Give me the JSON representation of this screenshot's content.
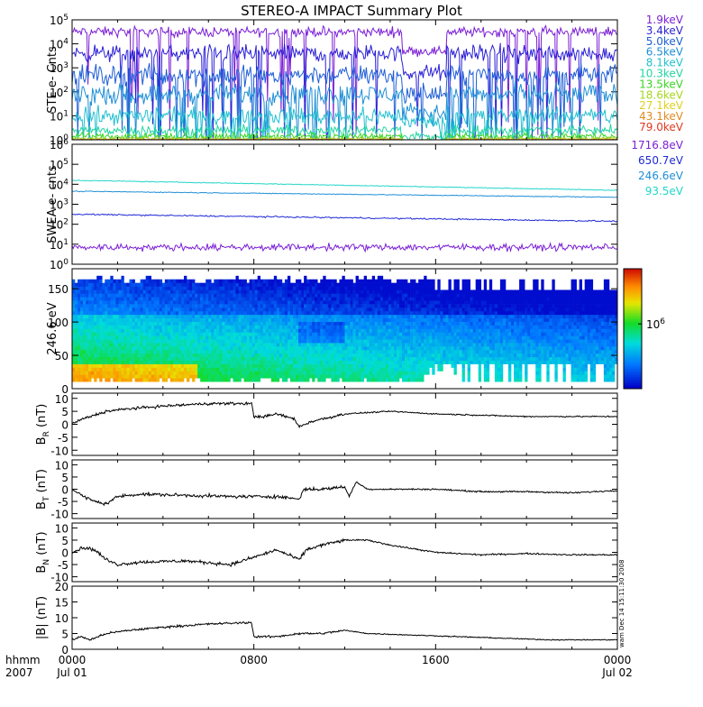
{
  "chart_data": {
    "type": "line",
    "title": "STEREO-A IMPACT Summary Plot",
    "x_axis": {
      "label_lines": [
        "hhmm",
        "2007"
      ],
      "ticks": [
        {
          "hhmm": "0000",
          "date": "Jul 01",
          "hours": 0
        },
        {
          "hhmm": "0800",
          "date": "",
          "hours": 8
        },
        {
          "hhmm": "1600",
          "date": "",
          "hours": 16
        },
        {
          "hhmm": "0000",
          "date": "Jul 02",
          "hours": 24
        }
      ],
      "xlim_hours": [
        0,
        24
      ]
    },
    "side_stamp": "wam Dec 14 15:11:30 2008",
    "panels": [
      {
        "id": "ste",
        "ylabel": "STE e- Cnts",
        "scale": "log",
        "ylim": [
          1,
          100000
        ],
        "tick_labels": [
          "10^0",
          "10^1",
          "10^2",
          "10^3",
          "10^4",
          "10^5"
        ],
        "series": [
          {
            "name": "1.9keV",
            "color": "#7b1fd6",
            "base": 4.5,
            "var": 0.3,
            "dips": 1.5
          },
          {
            "name": "3.4keV",
            "color": "#2a1fd6",
            "base": 3.6,
            "var": 0.5,
            "dips": 1.6
          },
          {
            "name": "5.0keV",
            "color": "#1f5ed6",
            "base": 2.7,
            "var": 0.6,
            "dips": 1.5
          },
          {
            "name": "6.5keV",
            "color": "#1f8fd6",
            "base": 1.9,
            "var": 0.6,
            "dips": 1.3
          },
          {
            "name": "8.1keV",
            "color": "#22c0d0",
            "base": 1.0,
            "var": 0.5,
            "dips": 0.8
          },
          {
            "name": "10.3keV",
            "color": "#22d6a0",
            "base": 0.4,
            "var": 0.3,
            "dips": 0.3
          },
          {
            "name": "13.5keV",
            "color": "#39d622",
            "base": 0.15,
            "var": 0.2,
            "dips": 0.1
          },
          {
            "name": "18.6keV",
            "color": "#a8d622",
            "base": 0.05,
            "var": 0.1,
            "dips": 0.0
          },
          {
            "name": "27.1keV",
            "color": "#e0d020",
            "base": 0.02,
            "var": 0.05,
            "dips": 0.0
          },
          {
            "name": "43.1keV",
            "color": "#e08a20",
            "base": 0.01,
            "var": 0.03,
            "dips": 0.0
          },
          {
            "name": "79.0keV",
            "color": "#e03a20",
            "base": 0.0,
            "var": 0.02,
            "dips": 0.0
          }
        ]
      },
      {
        "id": "swea",
        "ylabel": "SWEA e- cnts",
        "scale": "log",
        "ylim": [
          1,
          1000000
        ],
        "tick_labels": [
          "10^0",
          "10^1",
          "10^2",
          "10^3",
          "10^4",
          "10^5",
          "10^6"
        ],
        "series": [
          {
            "name": "1716.8eV",
            "color": "#7b1fd6",
            "start": 0.85,
            "end": 0.85,
            "noise": 0.25
          },
          {
            "name": "650.7eV",
            "color": "#1f2ad6",
            "start": 2.5,
            "end": 2.15,
            "noise": 0.05
          },
          {
            "name": "246.6eV",
            "color": "#1f8fd6",
            "start": 3.65,
            "end": 3.35,
            "noise": 0.03
          },
          {
            "name": "93.5eV",
            "color": "#22d6c8",
            "start": 4.2,
            "end": 3.7,
            "noise": 0.03
          }
        ]
      },
      {
        "id": "spectrogram",
        "ylabel": "246.6 eV",
        "type": "heatmap",
        "ylim": [
          0,
          180
        ],
        "yticks": [
          0,
          50,
          100,
          150
        ],
        "colorbar_label": "10^6"
      },
      {
        "id": "br",
        "ylabel": "B_R (nT)",
        "ylabel_main": "B",
        "ylabel_sub": "R",
        "ylabel_unit": "(nT)",
        "ylim": [
          -12,
          12
        ],
        "yticks": [
          -10,
          -5,
          0,
          5,
          10
        ],
        "keypoints": [
          [
            0,
            0
          ],
          [
            0.3,
            1.5
          ],
          [
            0.8,
            3
          ],
          [
            1.5,
            5
          ],
          [
            2.5,
            6
          ],
          [
            4,
            7
          ],
          [
            6,
            8
          ],
          [
            7.9,
            8
          ],
          [
            8.0,
            3
          ],
          [
            8.5,
            3
          ],
          [
            9,
            4
          ],
          [
            9.8,
            2
          ],
          [
            10,
            -1
          ],
          [
            10.5,
            1
          ],
          [
            11,
            2
          ],
          [
            12,
            4
          ],
          [
            14,
            5
          ],
          [
            16,
            4
          ],
          [
            18,
            3.5
          ],
          [
            20,
            3
          ],
          [
            22,
            3
          ],
          [
            24,
            3
          ]
        ],
        "noise": 0.8
      },
      {
        "id": "bt",
        "ylabel": "B_T (nT)",
        "ylabel_main": "B",
        "ylabel_sub": "T",
        "ylabel_unit": "(nT)",
        "ylim": [
          -12,
          12
        ],
        "yticks": [
          -10,
          -5,
          0,
          5,
          10
        ],
        "keypoints": [
          [
            0,
            0
          ],
          [
            0.5,
            -3
          ],
          [
            1,
            -5
          ],
          [
            1.5,
            -6
          ],
          [
            2,
            -3
          ],
          [
            3,
            -2
          ],
          [
            5,
            -2.5
          ],
          [
            7,
            -3
          ],
          [
            9,
            -3
          ],
          [
            10,
            -4
          ],
          [
            10.2,
            0
          ],
          [
            11,
            0
          ],
          [
            12,
            1
          ],
          [
            12.2,
            -3
          ],
          [
            12.5,
            3
          ],
          [
            13,
            0
          ],
          [
            14,
            0
          ],
          [
            16,
            0
          ],
          [
            18,
            -1
          ],
          [
            20,
            -1
          ],
          [
            22,
            -1.5
          ],
          [
            24,
            -0.5
          ]
        ],
        "noise": 1.0
      },
      {
        "id": "bn",
        "ylabel": "B_N (nT)",
        "ylabel_main": "B",
        "ylabel_sub": "N",
        "ylabel_unit": "(nT)",
        "ylim": [
          -12,
          12
        ],
        "yticks": [
          -10,
          -5,
          0,
          5,
          10
        ],
        "keypoints": [
          [
            0,
            0
          ],
          [
            0.5,
            2
          ],
          [
            1,
            1
          ],
          [
            1.5,
            -3
          ],
          [
            2,
            -5
          ],
          [
            3,
            -4
          ],
          [
            5,
            -3.5
          ],
          [
            7,
            -5
          ],
          [
            8,
            -2
          ],
          [
            9,
            1
          ],
          [
            10,
            -3
          ],
          [
            10.3,
            1
          ],
          [
            11,
            3
          ],
          [
            12,
            5
          ],
          [
            13,
            5
          ],
          [
            14,
            3
          ],
          [
            16,
            0
          ],
          [
            18,
            -1
          ],
          [
            20,
            -0.5
          ],
          [
            22,
            -1
          ],
          [
            24,
            -1
          ]
        ],
        "noise": 1.0
      },
      {
        "id": "bmag",
        "ylabel": "|B| (nT)",
        "ylim": [
          0,
          20
        ],
        "yticks": [
          0,
          5,
          10,
          15,
          20
        ],
        "keypoints": [
          [
            0,
            3
          ],
          [
            0.4,
            4
          ],
          [
            0.8,
            3
          ],
          [
            1.5,
            5
          ],
          [
            2.5,
            6
          ],
          [
            4,
            7
          ],
          [
            6,
            8
          ],
          [
            7.9,
            8.5
          ],
          [
            8.0,
            4
          ],
          [
            9,
            4
          ],
          [
            10,
            5
          ],
          [
            11,
            5
          ],
          [
            12,
            6
          ],
          [
            13,
            5
          ],
          [
            15,
            4.5
          ],
          [
            17,
            4
          ],
          [
            19,
            3.5
          ],
          [
            21,
            3
          ],
          [
            24,
            3
          ]
        ],
        "noise": 0.5
      }
    ]
  }
}
